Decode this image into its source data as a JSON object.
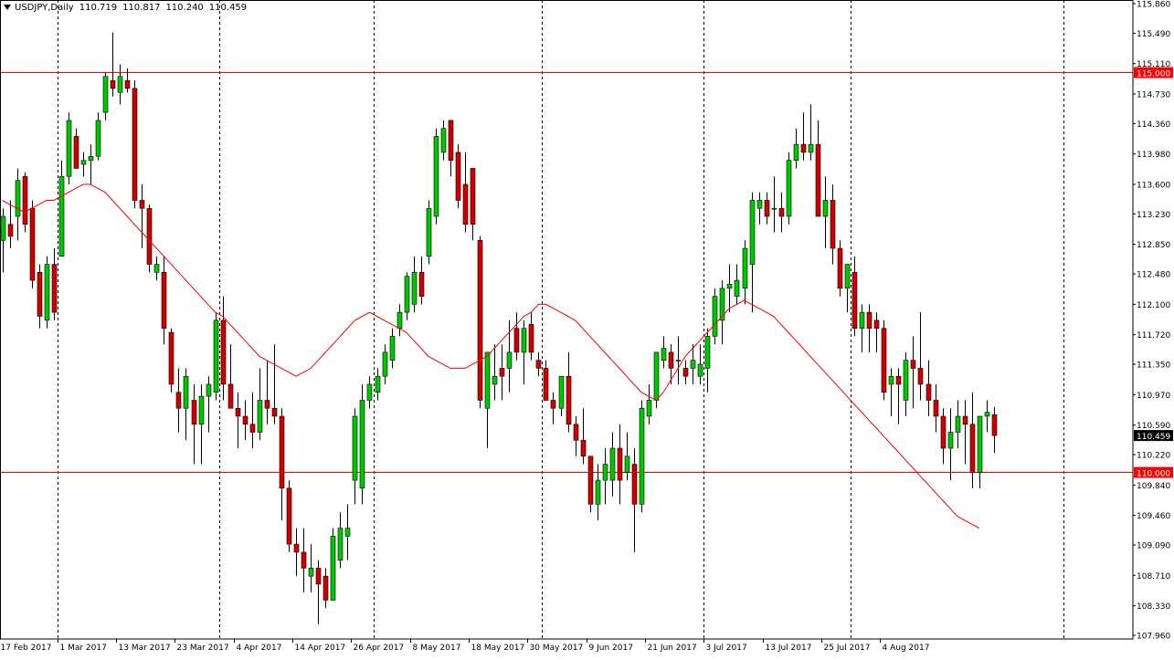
{
  "header": {
    "symbol": "USDJPY,Daily",
    "open": "110.719",
    "high": "110.817",
    "low": "110.240",
    "close": "110.459"
  },
  "colors": {
    "bull": "#00c800",
    "bear": "#d00000",
    "wick": "#000000",
    "ma": "#ff0000",
    "hline": "#ff0000",
    "hline_label_bg": "#ff0000",
    "price_label_bg": "#000000",
    "grid": "#000000"
  },
  "chart_data": {
    "type": "candlestick",
    "x_labels": [
      "17 Feb 2017",
      "1 Mar 2017",
      "13 Mar 2017",
      "23 Mar 2017",
      "4 Apr 2017",
      "14 Apr 2017",
      "26 Apr 2017",
      "8 May 2017",
      "18 May 2017",
      "30 May 2017",
      "9 Jun 2017",
      "21 Jun 2017",
      "3 Jul 2017",
      "13 Jul 2017",
      "25 Jul 2017",
      "4 Aug 2017"
    ],
    "label_candle_index": [
      0,
      8,
      16,
      24,
      32,
      40,
      48,
      56,
      64,
      72,
      80,
      88,
      96,
      104,
      112,
      120
    ],
    "y_ticks": [
      "115.860",
      "115.490",
      "115.110",
      "114.730",
      "114.360",
      "113.980",
      "113.600",
      "113.230",
      "112.850",
      "112.480",
      "112.100",
      "111.720",
      "111.350",
      "110.970",
      "110.590",
      "110.220",
      "109.840",
      "109.460",
      "109.090",
      "108.710",
      "108.330",
      "107.960"
    ],
    "ylim": [
      107.96,
      115.86
    ],
    "horizontal_lines": [
      {
        "value": 115.0,
        "label": "115.000"
      },
      {
        "value": 110.0,
        "label": "110.000"
      }
    ],
    "current_price": {
      "value": 110.459,
      "label": "110.459"
    },
    "vertical_separator_candles": [
      8,
      30,
      51,
      74,
      96,
      116,
      145
    ],
    "ohlc": [
      [
        112.9,
        113.3,
        112.5,
        113.2
      ],
      [
        113.1,
        113.4,
        112.8,
        112.95
      ],
      [
        113.2,
        113.8,
        112.9,
        113.65
      ],
      [
        113.7,
        113.75,
        113.0,
        113.1
      ],
      [
        113.3,
        113.4,
        112.3,
        112.4
      ],
      [
        112.5,
        112.6,
        111.8,
        111.95
      ],
      [
        111.9,
        112.7,
        111.8,
        112.6
      ],
      [
        112.6,
        112.8,
        111.9,
        112.0
      ],
      [
        112.7,
        113.9,
        112.7,
        113.7
      ],
      [
        113.7,
        114.5,
        113.6,
        114.4
      ],
      [
        114.2,
        114.3,
        113.8,
        113.8
      ],
      [
        113.85,
        114.0,
        113.7,
        113.9
      ],
      [
        113.9,
        114.1,
        113.6,
        113.95
      ],
      [
        113.95,
        114.5,
        113.9,
        114.4
      ],
      [
        114.5,
        115.0,
        114.4,
        114.95
      ],
      [
        114.9,
        115.5,
        114.7,
        114.8
      ],
      [
        114.75,
        115.1,
        114.6,
        114.95
      ],
      [
        114.9,
        115.05,
        114.75,
        114.8
      ],
      [
        114.8,
        114.9,
        113.3,
        113.4
      ],
      [
        113.4,
        113.6,
        112.8,
        113.3
      ],
      [
        113.3,
        113.35,
        112.5,
        112.6
      ],
      [
        112.5,
        112.7,
        112.4,
        112.6
      ],
      [
        112.5,
        112.7,
        111.6,
        111.8
      ],
      [
        111.75,
        111.8,
        111.0,
        111.1
      ],
      [
        111.0,
        111.3,
        110.5,
        110.8
      ],
      [
        110.8,
        111.3,
        110.4,
        111.2
      ],
      [
        110.9,
        111.1,
        110.1,
        110.6
      ],
      [
        110.6,
        111.1,
        110.1,
        110.95
      ],
      [
        110.95,
        111.2,
        110.5,
        111.1
      ],
      [
        111.0,
        112.0,
        110.9,
        111.9
      ],
      [
        111.9,
        112.2,
        110.9,
        111.1
      ],
      [
        111.1,
        111.6,
        110.8,
        110.8
      ],
      [
        110.8,
        111.0,
        110.3,
        110.7
      ],
      [
        110.7,
        110.9,
        110.4,
        110.6
      ],
      [
        110.6,
        111.0,
        110.3,
        110.5
      ],
      [
        110.5,
        111.3,
        110.4,
        110.9
      ],
      [
        110.9,
        111.4,
        110.6,
        110.8
      ],
      [
        110.8,
        111.6,
        110.6,
        110.7
      ],
      [
        110.7,
        110.8,
        109.4,
        109.8
      ],
      [
        109.8,
        109.9,
        109.0,
        109.1
      ],
      [
        109.1,
        109.3,
        108.7,
        109.0
      ],
      [
        109.0,
        109.3,
        108.5,
        108.8
      ],
      [
        108.7,
        109.1,
        108.5,
        108.8
      ],
      [
        108.8,
        108.9,
        108.1,
        108.6
      ],
      [
        108.7,
        108.8,
        108.3,
        108.4
      ],
      [
        108.4,
        109.3,
        108.4,
        109.2
      ],
      [
        108.9,
        109.5,
        108.8,
        109.3
      ],
      [
        109.2,
        109.6,
        108.9,
        109.3
      ],
      [
        109.9,
        110.8,
        109.6,
        110.7
      ],
      [
        109.8,
        111.1,
        109.6,
        110.9
      ],
      [
        110.9,
        111.2,
        110.8,
        111.1
      ],
      [
        111.0,
        111.3,
        110.9,
        111.2
      ],
      [
        111.2,
        111.6,
        111.1,
        111.5
      ],
      [
        111.4,
        111.8,
        111.3,
        111.7
      ],
      [
        111.8,
        112.1,
        111.7,
        112.0
      ],
      [
        112.0,
        112.5,
        111.9,
        112.45
      ],
      [
        112.1,
        112.7,
        112.0,
        112.5
      ],
      [
        112.5,
        112.7,
        112.1,
        112.2
      ],
      [
        112.7,
        113.4,
        112.6,
        113.3
      ],
      [
        113.2,
        114.3,
        113.1,
        114.2
      ],
      [
        114.0,
        114.4,
        113.9,
        114.3
      ],
      [
        114.4,
        114.4,
        113.7,
        113.9
      ],
      [
        114.0,
        114.1,
        113.3,
        113.4
      ],
      [
        113.6,
        114.0,
        113.0,
        113.1
      ],
      [
        113.8,
        113.8,
        112.9,
        113.1
      ],
      [
        112.9,
        112.95,
        110.8,
        110.9
      ],
      [
        110.8,
        111.5,
        110.3,
        111.5
      ],
      [
        111.1,
        111.6,
        110.9,
        111.2
      ],
      [
        111.3,
        111.6,
        110.9,
        111.2
      ],
      [
        111.3,
        111.9,
        111.0,
        111.5
      ],
      [
        111.8,
        112.0,
        111.4,
        111.5
      ],
      [
        111.5,
        111.9,
        111.1,
        111.8
      ],
      [
        111.85,
        112.0,
        111.4,
        111.5
      ],
      [
        111.4,
        111.5,
        111.2,
        111.3
      ],
      [
        111.3,
        111.4,
        110.9,
        110.9
      ],
      [
        110.9,
        111.0,
        110.6,
        110.8
      ],
      [
        110.8,
        111.2,
        110.7,
        111.2
      ],
      [
        111.2,
        111.5,
        110.5,
        110.6
      ],
      [
        110.6,
        110.7,
        110.2,
        110.4
      ],
      [
        110.4,
        110.8,
        110.1,
        110.2
      ],
      [
        110.2,
        110.2,
        109.5,
        109.6
      ],
      [
        109.6,
        110.1,
        109.4,
        109.9
      ],
      [
        109.9,
        110.3,
        109.6,
        110.1
      ],
      [
        109.9,
        110.5,
        109.7,
        110.3
      ],
      [
        110.3,
        110.6,
        109.6,
        109.9
      ],
      [
        110.0,
        110.5,
        109.9,
        110.2
      ],
      [
        110.1,
        110.3,
        109.0,
        109.6
      ],
      [
        109.6,
        110.9,
        109.5,
        110.8
      ],
      [
        110.7,
        111.1,
        110.6,
        110.9
      ],
      [
        110.9,
        111.5,
        110.8,
        111.5
      ],
      [
        111.4,
        111.7,
        111.3,
        111.55
      ],
      [
        111.5,
        111.6,
        111.1,
        111.3
      ],
      [
        111.4,
        111.7,
        111.1,
        111.4
      ],
      [
        111.3,
        111.4,
        111.1,
        111.2
      ],
      [
        111.3,
        111.6,
        111.1,
        111.4
      ],
      [
        111.2,
        111.6,
        111.1,
        111.35
      ],
      [
        111.3,
        111.8,
        111.0,
        111.7
      ],
      [
        111.7,
        112.3,
        111.6,
        112.2
      ],
      [
        111.9,
        112.4,
        111.6,
        112.3
      ],
      [
        112.3,
        112.6,
        112.0,
        112.35
      ],
      [
        112.2,
        112.6,
        112.1,
        112.4
      ],
      [
        112.3,
        112.9,
        112.1,
        112.8
      ],
      [
        112.6,
        113.5,
        112.0,
        113.4
      ],
      [
        113.3,
        113.5,
        113.1,
        113.4
      ],
      [
        113.4,
        113.5,
        113.1,
        113.2
      ],
      [
        113.3,
        113.7,
        113.0,
        113.3
      ],
      [
        113.3,
        113.5,
        113.0,
        113.2
      ],
      [
        113.2,
        114.0,
        113.1,
        113.9
      ],
      [
        113.9,
        114.3,
        113.8,
        114.1
      ],
      [
        114.1,
        114.5,
        113.9,
        114.0
      ],
      [
        114.0,
        114.6,
        113.9,
        114.1
      ],
      [
        114.1,
        114.4,
        113.2,
        113.2
      ],
      [
        113.2,
        113.7,
        112.8,
        113.4
      ],
      [
        113.4,
        113.6,
        112.6,
        112.8
      ],
      [
        112.8,
        112.9,
        112.2,
        112.3
      ],
      [
        112.3,
        112.6,
        112.0,
        112.6
      ],
      [
        112.5,
        112.7,
        111.7,
        111.8
      ],
      [
        111.8,
        112.1,
        111.5,
        112.0
      ],
      [
        112.0,
        112.1,
        111.5,
        111.8
      ],
      [
        111.9,
        112.0,
        111.5,
        111.8
      ],
      [
        111.8,
        111.9,
        110.9,
        111.0
      ],
      [
        111.1,
        111.3,
        110.7,
        111.2
      ],
      [
        111.2,
        111.3,
        110.6,
        111.1
      ],
      [
        110.9,
        111.5,
        110.7,
        111.4
      ],
      [
        111.4,
        111.7,
        110.8,
        111.3
      ],
      [
        111.3,
        112.0,
        110.9,
        111.1
      ],
      [
        111.1,
        111.4,
        110.7,
        110.9
      ],
      [
        110.9,
        111.1,
        110.5,
        110.7
      ],
      [
        110.7,
        110.8,
        110.1,
        110.3
      ],
      [
        110.3,
        110.8,
        109.9,
        110.5
      ],
      [
        110.5,
        110.9,
        110.3,
        110.7
      ],
      [
        110.7,
        110.9,
        110.1,
        110.6
      ],
      [
        110.6,
        111.0,
        109.8,
        110.0
      ],
      [
        110.0,
        110.7,
        109.8,
        110.7
      ],
      [
        110.7,
        110.9,
        110.5,
        110.75
      ],
      [
        110.719,
        110.817,
        110.24,
        110.459
      ]
    ],
    "ma": [
      113.4,
      113.35,
      113.3,
      113.25,
      113.3,
      113.35,
      113.4,
      113.4,
      113.45,
      113.5,
      113.55,
      113.6,
      113.6,
      113.55,
      113.5,
      113.4,
      113.3,
      113.2,
      113.1,
      113.0,
      112.9,
      112.8,
      112.7,
      112.6,
      112.5,
      112.4,
      112.3,
      112.2,
      112.1,
      112.0,
      111.95,
      111.85,
      111.75,
      111.65,
      111.55,
      111.45,
      111.4,
      111.35,
      111.3,
      111.25,
      111.2,
      111.25,
      111.3,
      111.4,
      111.5,
      111.6,
      111.7,
      111.8,
      111.9,
      111.95,
      112.0,
      111.95,
      111.9,
      111.85,
      111.8,
      111.75,
      111.65,
      111.55,
      111.45,
      111.4,
      111.35,
      111.3,
      111.3,
      111.3,
      111.35,
      111.4,
      111.45,
      111.55,
      111.65,
      111.75,
      111.85,
      111.95,
      112.0,
      112.1,
      112.1,
      112.05,
      112.0,
      111.95,
      111.9,
      111.8,
      111.7,
      111.6,
      111.5,
      111.4,
      111.3,
      111.2,
      111.1,
      111.0,
      110.95,
      110.9,
      111.0,
      111.15,
      111.3,
      111.45,
      111.55,
      111.65,
      111.75,
      111.85,
      111.95,
      112.05,
      112.1,
      112.15,
      112.1,
      112.05,
      112.0,
      111.95,
      111.85,
      111.75,
      111.65,
      111.55,
      111.45,
      111.35,
      111.25,
      111.15,
      111.05,
      110.95,
      110.85,
      110.75,
      110.65,
      110.55,
      110.45,
      110.35,
      110.25,
      110.15,
      110.05,
      109.95,
      109.85,
      109.75,
      109.65,
      109.55,
      109.45,
      109.4,
      109.35,
      109.3
    ]
  }
}
